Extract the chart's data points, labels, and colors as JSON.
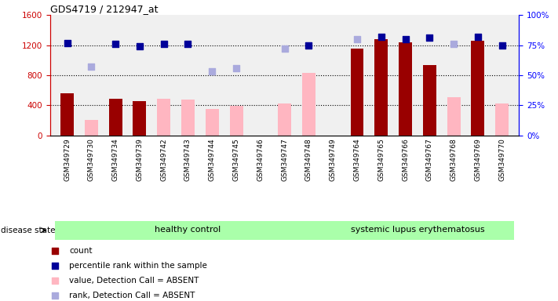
{
  "title": "GDS4719 / 212947_at",
  "samples": [
    "GSM349729",
    "GSM349730",
    "GSM349734",
    "GSM349739",
    "GSM349742",
    "GSM349743",
    "GSM349744",
    "GSM349745",
    "GSM349746",
    "GSM349747",
    "GSM349748",
    "GSM349749",
    "GSM349764",
    "GSM349765",
    "GSM349766",
    "GSM349767",
    "GSM349768",
    "GSM349769",
    "GSM349770"
  ],
  "count_values": [
    560,
    null,
    490,
    460,
    null,
    null,
    null,
    null,
    null,
    null,
    null,
    null,
    1150,
    1280,
    1240,
    940,
    null,
    1260,
    null
  ],
  "absent_value_bars": [
    null,
    210,
    null,
    null,
    490,
    480,
    350,
    390,
    null,
    420,
    830,
    null,
    null,
    null,
    null,
    null,
    510,
    null,
    420
  ],
  "percentile_rank": [
    77,
    null,
    76,
    74,
    76,
    76,
    null,
    null,
    null,
    null,
    75,
    null,
    null,
    82,
    80,
    81,
    null,
    82,
    75
  ],
  "absent_rank": [
    null,
    57,
    null,
    null,
    null,
    null,
    53,
    56,
    null,
    72,
    null,
    null,
    80,
    null,
    null,
    null,
    76,
    null,
    null
  ],
  "healthy_control_count": 11,
  "ylim_left": [
    0,
    1600
  ],
  "ylim_right": [
    0,
    100
  ],
  "yticks_left": [
    0,
    400,
    800,
    1200,
    1600
  ],
  "yticks_right": [
    0,
    25,
    50,
    75,
    100
  ],
  "ytick_labels_left": [
    "0",
    "400",
    "800",
    "1200",
    "1600"
  ],
  "ytick_labels_right": [
    "0%",
    "25%",
    "50%",
    "75%",
    "100%"
  ],
  "color_count": "#990000",
  "color_percentile": "#000099",
  "color_absent_value": "#FFB6C1",
  "color_absent_rank": "#AAAADD",
  "legend_items": [
    "count",
    "percentile rank within the sample",
    "value, Detection Call = ABSENT",
    "rank, Detection Call = ABSENT"
  ],
  "healthy_label": "healthy control",
  "sle_label": "systemic lupus erythematosus",
  "disease_state_label": "disease state",
  "healthy_color": "#AAFFAA",
  "sle_color": "#AAFFAA",
  "dot_size": 40
}
